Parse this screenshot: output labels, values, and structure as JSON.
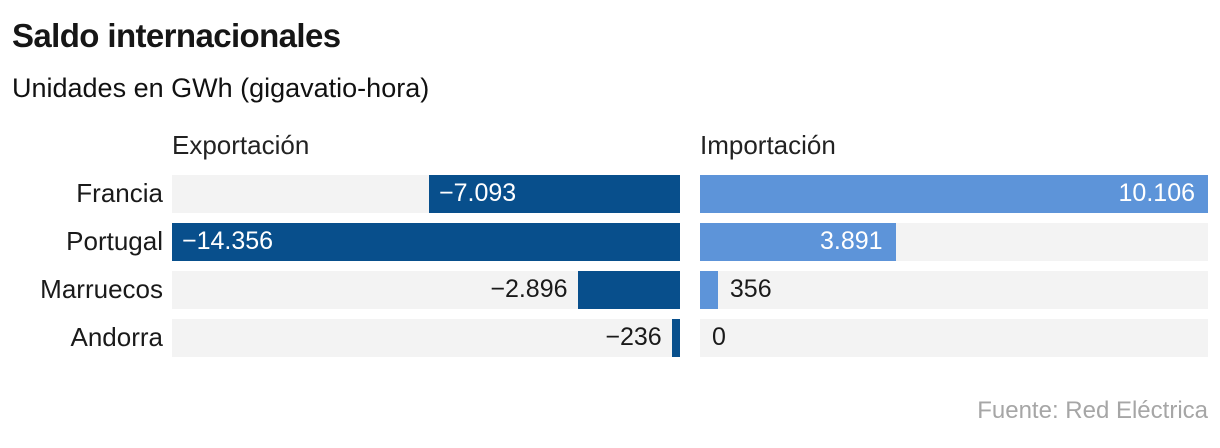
{
  "header": {
    "title": "Saldo internacionales",
    "subtitle": "Unidades en GWh (gigavatio-hora)"
  },
  "footer": {
    "source": "Fuente: Red Eléctrica"
  },
  "chart_data": {
    "type": "bar",
    "orientation": "horizontal",
    "title": "Saldo internacionales",
    "subtitle": "Unidades en GWh (gigavatio-hora)",
    "unit": "GWh",
    "categories": [
      "Francia",
      "Portugal",
      "Marruecos",
      "Andorra"
    ],
    "series": [
      {
        "name": "Exportación",
        "values": [
          -7093,
          -14356,
          -2896,
          -236
        ],
        "labels": [
          "−7.093",
          "−14.356",
          "−2.896",
          "−236"
        ],
        "label_inside": [
          true,
          true,
          false,
          false
        ],
        "axis_max": 14356,
        "direction": "rtl",
        "color": "#084f8c"
      },
      {
        "name": "Importación",
        "values": [
          10106,
          3891,
          356,
          0
        ],
        "labels": [
          "10.106",
          "3.891",
          "356",
          "0"
        ],
        "label_inside": [
          true,
          true,
          false,
          false
        ],
        "axis_max": 10106,
        "direction": "ltr",
        "color": "#5d94d9"
      }
    ],
    "track_color": "#f3f3f3",
    "grid": false,
    "legend_position": "column-headers",
    "source": "Fuente: Red Eléctrica"
  }
}
